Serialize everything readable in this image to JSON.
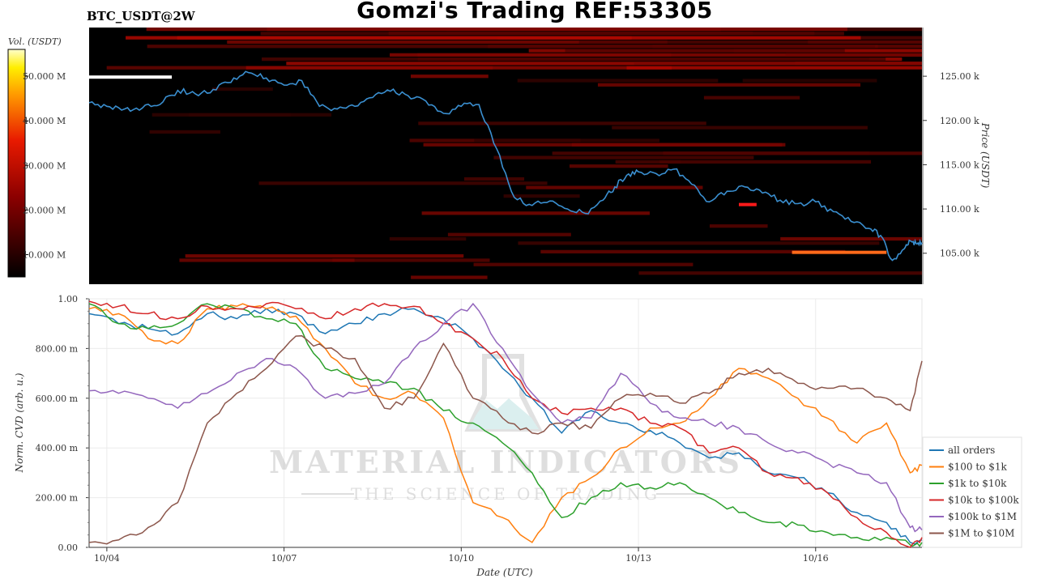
{
  "header": {
    "title": "Gomzi's Trading REF:53305",
    "pair": "BTC_USDT@2W"
  },
  "colorbar": {
    "label": "Vol. (USDT)",
    "ticks": [
      "50.000 M",
      "40.000 M",
      "30.000 M",
      "20.000 M",
      "10.000 M"
    ],
    "tick_values": [
      50,
      40,
      30,
      20,
      10
    ],
    "range": [
      5,
      56
    ]
  },
  "watermark": {
    "line1": "MATERIAL INDICATORS",
    "line2": "THE SCIENCE OF TRADING"
  },
  "chart_data": [
    {
      "type": "heatmap",
      "title": "",
      "ylabel": "Price (USDT)",
      "ylim": [
        101500,
        130500
      ],
      "xlim": [
        0,
        14.1
      ],
      "ytick_values": [
        125000,
        120000,
        115000,
        110000,
        105000
      ],
      "ytick_labels": [
        "125.00 k",
        "120.00 k",
        "115.00 k",
        "110.00 k",
        "105.00 k"
      ],
      "colors": {
        "low": "#000000",
        "mid": "#8b0000",
        "high": "#ffff99",
        "price_line": "#3a8fd0"
      },
      "price_series": {
        "name": "",
        "x": [
          0,
          0.3,
          0.6,
          0.9,
          1.2,
          1.5,
          1.8,
          2.1,
          2.4,
          2.7,
          3.0,
          3.3,
          3.6,
          3.9,
          4.2,
          4.5,
          4.8,
          5.1,
          5.4,
          5.7,
          6.0,
          6.3,
          6.6,
          6.9,
          7.2,
          7.5,
          7.8,
          8.1,
          8.4,
          8.7,
          8.9,
          9.1,
          9.3,
          9.6,
          9.9,
          10.2,
          10.5,
          10.8,
          11.1,
          11.4,
          11.7,
          12.0,
          12.3,
          12.6,
          12.9,
          13.2,
          13.4,
          13.6,
          13.8,
          13.9,
          14.0,
          14.1
        ],
        "y": [
          122000,
          121600,
          121300,
          121400,
          121800,
          123400,
          123000,
          123500,
          124300,
          125400,
          124800,
          124000,
          124500,
          121600,
          121300,
          121600,
          122600,
          123300,
          122800,
          122200,
          120800,
          121600,
          121800,
          116800,
          111300,
          110400,
          110900,
          110000,
          109500,
          111000,
          112500,
          113800,
          114200,
          114000,
          114500,
          112800,
          110800,
          112000,
          112500,
          111800,
          111000,
          110600,
          110800,
          109700,
          108600,
          107800,
          107000,
          104200,
          105500,
          106400,
          106100,
          106200
        ]
      },
      "hot_bands": [
        {
          "y": 124900,
          "x0": 0.0,
          "x1": 1.4,
          "color": "#ffffff"
        },
        {
          "y": 105100,
          "x0": 11.9,
          "x1": 13.5,
          "color": "#ff6a1a"
        },
        {
          "y": 110500,
          "x0": 11.0,
          "x1": 11.3,
          "color": "#ff1a1a"
        }
      ]
    },
    {
      "type": "line",
      "title": "",
      "xlabel": "Date (UTC)",
      "ylabel": "Norm. CVD (arb. u.)",
      "ylim": [
        0,
        1.0
      ],
      "xlim": [
        0,
        14.1
      ],
      "ytick_values": [
        0,
        0.2,
        0.4,
        0.6,
        0.8,
        1.0
      ],
      "ytick_labels": [
        "0.00",
        "200.00 m",
        "400.00 m",
        "600.00 m",
        "800.00 m",
        "1.00"
      ],
      "xtick_values": [
        0.3,
        3.3,
        6.3,
        9.3,
        12.3
      ],
      "xtick_labels": [
        "10/04",
        "10/07",
        "10/10",
        "10/13",
        "10/16"
      ],
      "grid": true,
      "legend": "right",
      "series": [
        {
          "name": "all orders",
          "color": "#1f77b4",
          "x": [
            0,
            0.5,
            1,
            1.5,
            2,
            2.5,
            3,
            3.5,
            4,
            4.5,
            5,
            5.5,
            6,
            6.5,
            7,
            7.5,
            8,
            8.5,
            9,
            9.5,
            10,
            10.5,
            11,
            11.5,
            12,
            12.5,
            13,
            13.5,
            13.9,
            14.1
          ],
          "y": [
            0.94,
            0.9,
            0.88,
            0.86,
            0.94,
            0.92,
            0.96,
            0.94,
            0.86,
            0.9,
            0.94,
            0.96,
            0.92,
            0.84,
            0.72,
            0.6,
            0.46,
            0.55,
            0.5,
            0.47,
            0.42,
            0.36,
            0.38,
            0.3,
            0.28,
            0.22,
            0.14,
            0.1,
            0.02,
            0.03
          ]
        },
        {
          "name": "$100 to $1k",
          "color": "#ff7f0e",
          "x": [
            0,
            0.5,
            1,
            1.5,
            2,
            2.5,
            3,
            3.5,
            4,
            4.5,
            5,
            5.5,
            6,
            6.5,
            7,
            7.5,
            8,
            8.5,
            9,
            9.5,
            10,
            10.5,
            11,
            11.5,
            12,
            12.5,
            13,
            13.5,
            13.9,
            14.1
          ],
          "y": [
            0.96,
            0.94,
            0.84,
            0.82,
            0.96,
            0.97,
            0.96,
            0.93,
            0.8,
            0.66,
            0.6,
            0.62,
            0.52,
            0.18,
            0.12,
            0.02,
            0.2,
            0.28,
            0.4,
            0.48,
            0.5,
            0.6,
            0.72,
            0.68,
            0.6,
            0.52,
            0.42,
            0.5,
            0.3,
            0.33
          ]
        },
        {
          "name": "$1k to $10k",
          "color": "#2ca02c",
          "x": [
            0,
            0.5,
            1,
            1.5,
            2,
            2.5,
            3,
            3.5,
            4,
            4.5,
            5,
            5.5,
            6,
            6.5,
            7,
            7.5,
            8,
            8.5,
            9,
            9.5,
            10,
            10.5,
            11,
            11.5,
            12,
            12.5,
            13,
            13.5,
            13.9,
            14.1
          ],
          "y": [
            0.98,
            0.9,
            0.88,
            0.9,
            0.98,
            0.96,
            0.92,
            0.9,
            0.72,
            0.68,
            0.66,
            0.64,
            0.55,
            0.5,
            0.42,
            0.3,
            0.12,
            0.2,
            0.26,
            0.24,
            0.26,
            0.2,
            0.14,
            0.1,
            0.09,
            0.06,
            0.04,
            0.04,
            0.01,
            0.02
          ]
        },
        {
          "name": "$10k to $100k",
          "color": "#d62728",
          "x": [
            0,
            0.5,
            1,
            1.5,
            2,
            2.5,
            3,
            3.5,
            4,
            4.5,
            5,
            5.5,
            6,
            6.5,
            7,
            7.5,
            8,
            8.5,
            9,
            9.5,
            10,
            10.5,
            11,
            11.5,
            12,
            12.5,
            13,
            13.5,
            13.9,
            14.1
          ],
          "y": [
            0.99,
            0.97,
            0.94,
            0.92,
            0.97,
            0.96,
            0.98,
            0.96,
            0.92,
            0.96,
            0.98,
            0.97,
            0.9,
            0.84,
            0.76,
            0.6,
            0.54,
            0.56,
            0.56,
            0.5,
            0.48,
            0.38,
            0.4,
            0.3,
            0.28,
            0.22,
            0.12,
            0.06,
            0.0,
            0.04
          ]
        },
        {
          "name": "$100k to $1M",
          "color": "#9467bd",
          "x": [
            0,
            0.5,
            1,
            1.5,
            2,
            2.5,
            3,
            3.5,
            4,
            4.5,
            5,
            5.5,
            6,
            6.5,
            7,
            7.5,
            8,
            8.5,
            9,
            9.5,
            10,
            10.5,
            11,
            11.5,
            12,
            12.5,
            13,
            13.5,
            13.9,
            14.1
          ],
          "y": [
            0.63,
            0.62,
            0.6,
            0.56,
            0.62,
            0.7,
            0.76,
            0.72,
            0.6,
            0.62,
            0.66,
            0.8,
            0.9,
            0.98,
            0.8,
            0.62,
            0.5,
            0.52,
            0.7,
            0.58,
            0.52,
            0.5,
            0.48,
            0.42,
            0.38,
            0.34,
            0.3,
            0.26,
            0.08,
            0.07
          ]
        },
        {
          "name": "$1M to $10M",
          "color": "#8c564b",
          "x": [
            0,
            0.5,
            1,
            1.5,
            2,
            2.5,
            3,
            3.5,
            4,
            4.5,
            5,
            5.5,
            6,
            6.5,
            7,
            7.5,
            8,
            8.5,
            9,
            9.5,
            10,
            10.5,
            11,
            11.5,
            12,
            12.5,
            13,
            13.5,
            13.9,
            14.1
          ],
          "y": [
            0.02,
            0.03,
            0.08,
            0.18,
            0.5,
            0.62,
            0.72,
            0.85,
            0.8,
            0.76,
            0.56,
            0.6,
            0.82,
            0.6,
            0.52,
            0.46,
            0.5,
            0.48,
            0.6,
            0.62,
            0.58,
            0.62,
            0.7,
            0.72,
            0.66,
            0.64,
            0.64,
            0.6,
            0.55,
            0.75
          ]
        }
      ]
    }
  ]
}
